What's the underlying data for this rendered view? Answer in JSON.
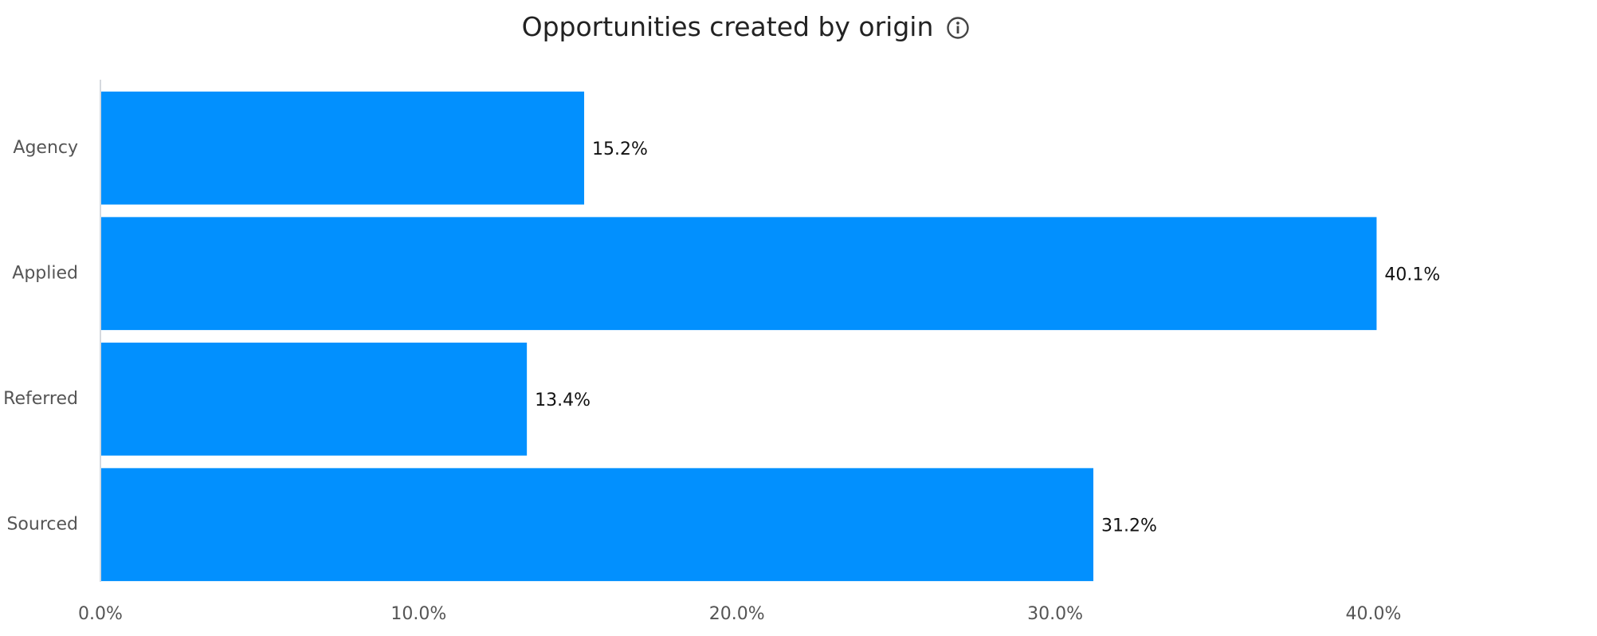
{
  "chart_data": {
    "type": "bar",
    "orientation": "horizontal",
    "title": "Opportunities created by origin",
    "title_icon": "info-icon",
    "categories": [
      "Agency",
      "Applied",
      "Referred",
      "Sourced"
    ],
    "values": [
      15.2,
      40.1,
      13.4,
      31.2
    ],
    "data_labels": [
      "15.2%",
      "40.1%",
      "13.4%",
      "31.2%"
    ],
    "x_ticks": [
      "0.0%",
      "10.0%",
      "20.0%",
      "30.0%",
      "40.0%"
    ],
    "xlim": [
      0,
      46.8
    ],
    "xlabel": "",
    "ylabel": "",
    "grid": false,
    "legend": false,
    "bar_color": "#0290FE",
    "axis_color": "#D5D9DE",
    "tick_label_color": "#555555",
    "data_label_color": "#111111"
  }
}
